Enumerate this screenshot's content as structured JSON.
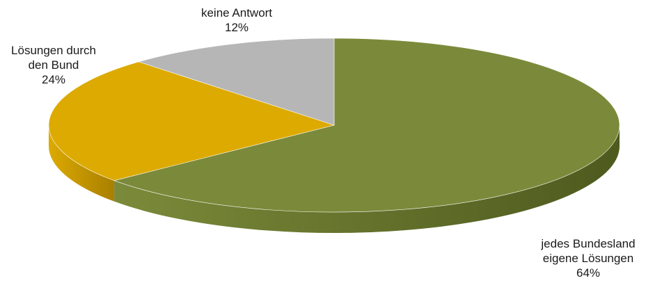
{
  "chart_data": {
    "type": "pie",
    "title": "",
    "slices": [
      {
        "label_lines": [
          "jedes Bundesland",
          "eigene Lösungen"
        ],
        "value": 64,
        "value_label": "64%",
        "color": "#7b8a3a",
        "side_color": "#4e5a1e"
      },
      {
        "label_lines": [
          "Lösungen durch",
          "den Bund"
        ],
        "value": 24,
        "value_label": "24%",
        "color": "#dcaa00",
        "side_color": "#a97f00"
      },
      {
        "label_lines": [
          "keine Antwort"
        ],
        "value": 12,
        "value_label": "12%",
        "color": "#b6b6b6",
        "side_color": "#8c8c8c"
      }
    ],
    "legend": "none",
    "style": "3d"
  }
}
